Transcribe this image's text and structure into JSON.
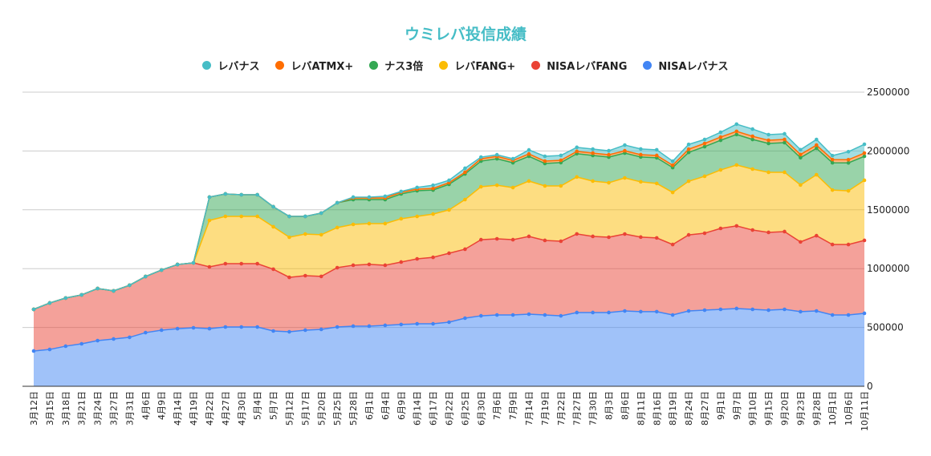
{
  "chart_data": {
    "type": "area",
    "stacked": true,
    "title": "ウミレバ投信成績",
    "xlabel": "",
    "ylabel": "",
    "ylim": [
      0,
      2500000
    ],
    "yticks": [
      "0",
      "500000",
      "1000000",
      "1500000",
      "2000000",
      "2500000"
    ],
    "grid": true,
    "legend_position": "top",
    "categories": [
      "3月12日",
      "3月15日",
      "3月18日",
      "3月21日",
      "3月24日",
      "3月27日",
      "3月31日",
      "4月6日",
      "4月9日",
      "4月14日",
      "4月19日",
      "4月22日",
      "4月27日",
      "4月30日",
      "5月4日",
      "5月7日",
      "5月12日",
      "5月17日",
      "5月20日",
      "5月25日",
      "5月28日",
      "6月1日",
      "6月4日",
      "6月9日",
      "6月14日",
      "6月17日",
      "6月22日",
      "6月25日",
      "6月30日",
      "7月6日",
      "7月9日",
      "7月14日",
      "7月19日",
      "7月22日",
      "7月27日",
      "7月30日",
      "8月3日",
      "8月6日",
      "8月11日",
      "8月16日",
      "8月19日",
      "8月24日",
      "8月27日",
      "9月1日",
      "9月7日",
      "9月10日",
      "9月15日",
      "9月20日",
      "9月23日",
      "9月28日",
      "10月1日",
      "10月6日",
      "10月11日"
    ],
    "series": [
      {
        "name": "NISAレバナス",
        "color": "#4285f4",
        "values": [
          300000,
          313000,
          341000,
          361000,
          388000,
          402000,
          416000,
          456000,
          477000,
          490000,
          497000,
          490000,
          504000,
          504000,
          504000,
          470000,
          463000,
          477000,
          484000,
          504000,
          511000,
          511000,
          518000,
          525000,
          531000,
          531000,
          545000,
          579000,
          599000,
          606000,
          606000,
          613000,
          606000,
          599000,
          627000,
          627000,
          627000,
          640000,
          634000,
          634000,
          606000,
          640000,
          647000,
          654000,
          661000,
          654000,
          647000,
          654000,
          634000,
          640000,
          606000,
          606000,
          620000
        ]
      },
      {
        "name": "NISAレバFANG",
        "color": "#ea4335",
        "values": [
          354000,
          395000,
          409000,
          416000,
          443000,
          409000,
          443000,
          477000,
          511000,
          545000,
          552000,
          525000,
          538000,
          538000,
          538000,
          525000,
          463000,
          463000,
          450000,
          504000,
          518000,
          525000,
          511000,
          531000,
          552000,
          565000,
          586000,
          586000,
          647000,
          647000,
          640000,
          661000,
          634000,
          634000,
          668000,
          647000,
          640000,
          654000,
          634000,
          627000,
          599000,
          647000,
          654000,
          688000,
          702000,
          674000,
          661000,
          661000,
          593000,
          640000,
          599000,
          599000,
          620000
        ]
      },
      {
        "name": "レバFANG+",
        "color": "#fbbc04",
        "values": [
          0,
          0,
          0,
          0,
          0,
          0,
          0,
          0,
          0,
          0,
          0,
          395000,
          402000,
          402000,
          402000,
          361000,
          341000,
          354000,
          354000,
          341000,
          347000,
          347000,
          354000,
          368000,
          361000,
          368000,
          368000,
          422000,
          450000,
          456000,
          443000,
          470000,
          463000,
          470000,
          484000,
          470000,
          463000,
          477000,
          470000,
          463000,
          443000,
          456000,
          484000,
          497000,
          518000,
          518000,
          511000,
          504000,
          484000,
          518000,
          463000,
          456000,
          511000
        ]
      },
      {
        "name": "ナス3倍",
        "color": "#34a853",
        "values": [
          0,
          0,
          0,
          0,
          0,
          0,
          0,
          0,
          0,
          0,
          0,
          198000,
          191000,
          184000,
          184000,
          170000,
          177000,
          150000,
          184000,
          211000,
          211000,
          204000,
          204000,
          211000,
          218000,
          204000,
          218000,
          218000,
          218000,
          225000,
          211000,
          211000,
          191000,
          198000,
          198000,
          218000,
          218000,
          211000,
          211000,
          218000,
          211000,
          245000,
          252000,
          252000,
          259000,
          252000,
          245000,
          252000,
          232000,
          225000,
          232000,
          238000,
          204000
        ]
      },
      {
        "name": "レバATMX+",
        "color": "#ff6d01",
        "values": [
          0,
          0,
          0,
          0,
          0,
          0,
          0,
          0,
          0,
          0,
          0,
          0,
          0,
          0,
          0,
          0,
          0,
          0,
          0,
          0,
          14000,
          14000,
          14000,
          14000,
          14000,
          14000,
          14000,
          14000,
          20000,
          20000,
          20000,
          20000,
          20000,
          20000,
          20000,
          20000,
          20000,
          20000,
          20000,
          20000,
          20000,
          27000,
          27000,
          27000,
          27000,
          27000,
          27000,
          27000,
          27000,
          27000,
          27000,
          27000,
          27000
        ]
      },
      {
        "name": "レバナス",
        "color": "#46bdc6",
        "values": [
          0,
          0,
          0,
          0,
          0,
          0,
          0,
          0,
          0,
          0,
          0,
          0,
          0,
          0,
          0,
          0,
          0,
          0,
          0,
          0,
          7000,
          7000,
          14000,
          7000,
          14000,
          27000,
          20000,
          34000,
          14000,
          14000,
          14000,
          34000,
          41000,
          41000,
          34000,
          34000,
          34000,
          48000,
          48000,
          48000,
          34000,
          41000,
          34000,
          41000,
          61000,
          61000,
          48000,
          48000,
          41000,
          48000,
          34000,
          68000,
          75000
        ]
      }
    ],
    "legend_order": [
      "レバナス",
      "レバATMX+",
      "ナス3倍",
      "レバFANG+",
      "NISAレバFANG",
      "NISAレバナス"
    ]
  }
}
